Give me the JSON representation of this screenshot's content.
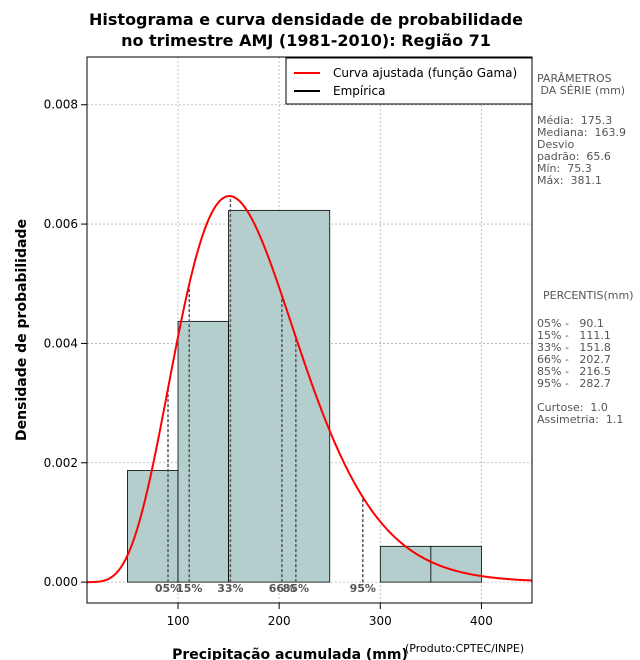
{
  "chart_data": {
    "type": "bar",
    "title": [
      "Histograma e curva densidade de probabilidade",
      "no trimestre AMJ (1981-2010): Região 71"
    ],
    "xlabel": "Precipitação acumulada (mm)",
    "ylabel": "Densidade de probabilidade",
    "credit": "(Produto:CPTEC/INPE)",
    "xlim": [
      10,
      450
    ],
    "ylim": [
      -0.00035,
      0.0088
    ],
    "xticks": [
      100,
      200,
      300,
      400
    ],
    "xtick_labels": [
      "100",
      "200",
      "300",
      "400"
    ],
    "yticks": [
      0.0,
      0.002,
      0.004,
      0.006,
      0.008
    ],
    "ytick_labels": [
      "0.000",
      "0.002",
      "0.004",
      "0.006",
      "0.008"
    ],
    "grid": true,
    "legend_position": "top-right",
    "legend": [
      {
        "label": "Curva ajustada (função Gama)",
        "color": "#ff0000"
      },
      {
        "label": "Empírica",
        "color": "#000000"
      }
    ],
    "bins": [
      {
        "from": 50,
        "to": 100,
        "density": 0.00187
      },
      {
        "from": 100,
        "to": 150,
        "density": 0.00437
      },
      {
        "from": 150,
        "to": 250,
        "density": 0.00623
      },
      {
        "from": 300,
        "to": 350,
        "density": 0.0006
      },
      {
        "from": 350,
        "to": 400,
        "density": 0.0006
      }
    ],
    "gamma_fit": {
      "mean": 175.3,
      "sd": 65.6
    },
    "percentile_markers": [
      {
        "label": "05%",
        "value": 90.1
      },
      {
        "label": "15%",
        "value": 111.1
      },
      {
        "label": "33%",
        "value": 151.8
      },
      {
        "label": "66%",
        "value": 202.7
      },
      {
        "label": "85%",
        "value": 216.5
      },
      {
        "label": "95%",
        "value": 282.7
      }
    ],
    "colors": {
      "bar_fill": "#b4cece",
      "curve": "#ff0000",
      "grid": "#b4b4b4",
      "marker": "#555555"
    }
  },
  "sidebar": {
    "params_title": "PARÂMETROS\n DA SÉRIE (mm)",
    "params_body": "Média:  175.3\nMediana:  163.9\nDesvio\npadrão:  65.6\nMín:  75.3\nMáx:  381.1",
    "percentis_title": "PERCENTIS(mm)",
    "percentis_body": "05% -   90.1\n15% -   111.1\n33% -   151.8\n66% -   202.7\n85% -   216.5\n95% -   282.7\n\nCurtose:  1.0\nAssimetria:  1.1"
  }
}
